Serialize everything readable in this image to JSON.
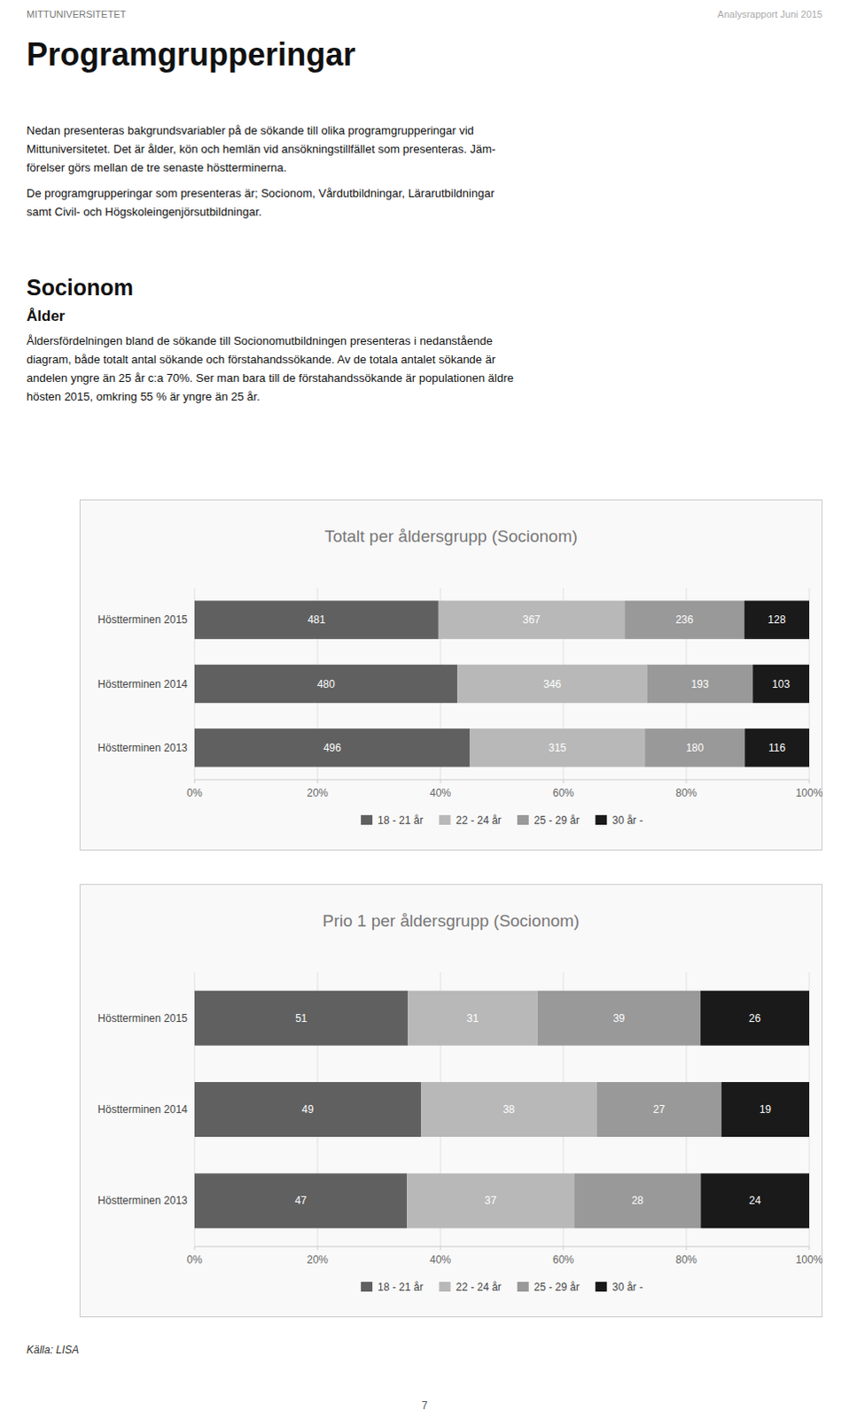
{
  "page": {
    "header_left": "MITTUNIVERSITETET",
    "header_right": "Analysrapport Juni 2015",
    "title": "Programgrupperingar",
    "intro_paragraphs": [
      [
        "Nedan presenteras bakgrundsvariabler på de sökande till olika programgrupperingar vid",
        "Mittuniversitetet. Det är ålder, kön och hemlän vid ansökningstillfället som presenteras. Jäm-",
        "förelser görs mellan de tre senaste höstterminerna."
      ],
      [
        "De programgrupperingar som presenteras är; Socionom, Vårdutbildningar, Lärarutbildningar",
        "samt Civil- och Högskoleingenjörsutbildningar."
      ]
    ],
    "section_title": "Socionom",
    "subsection_title": "Ålder",
    "body_text": [
      "Åldersfördelningen bland de sökande till Socionomutbildningen presenteras i nedanstående",
      "diagram, både totalt antal sökande och förstahandssökande. Av de totala antalet sökande är",
      "andelen yngre än 25 år c:a 70%. Ser man bara till de förstahandssökande är populationen äldre",
      "hösten 2015, omkring 55 % är yngre än 25 år."
    ],
    "footer": "Källa: LISA",
    "page_number": "7"
  },
  "chart_data": [
    {
      "type": "bar",
      "orientation": "horizontal",
      "stacked": true,
      "grid": true,
      "legend": "bottom",
      "title": "Totalt per åldersgrupp (Socionom)",
      "categories": [
        "Höstterminen 2015",
        "Höstterminen 2014",
        "Höstterminen 2013"
      ],
      "xlim": [
        0,
        100
      ],
      "xticks": [
        {
          "value": 0,
          "label": "0%"
        },
        {
          "value": 20,
          "label": "20%"
        },
        {
          "value": 40,
          "label": "40%"
        },
        {
          "value": 60,
          "label": "60%"
        },
        {
          "value": 80,
          "label": "80%"
        },
        {
          "value": 100,
          "label": "100%"
        }
      ],
      "series": [
        {
          "name": "18 - 21 år",
          "color": "#606060",
          "values": [
            39.686,
            42.781,
            44.806
          ],
          "counts": [
            481,
            480,
            496
          ]
        },
        {
          "name": "22 - 24 år",
          "color": "#b8b8b8",
          "values": [
            30.281,
            30.838,
            28.455
          ],
          "counts": [
            367,
            346,
            315
          ]
        },
        {
          "name": "25 - 29 år",
          "color": "#999999",
          "values": [
            19.472,
            17.201,
            16.26
          ],
          "counts": [
            236,
            193,
            180
          ]
        },
        {
          "name": "30 år -",
          "color": "#1a1a1a",
          "values": [
            10.561,
            9.18,
            10.479
          ],
          "counts": [
            128,
            103,
            116
          ]
        }
      ]
    },
    {
      "type": "bar",
      "orientation": "horizontal",
      "stacked": true,
      "grid": true,
      "legend": "bottom",
      "title": "Prio 1 per åldersgrupp (Socionom)",
      "categories": [
        "Höstterminen 2015",
        "Höstterminen 2014",
        "Höstterminen 2013"
      ],
      "xlim": [
        0,
        100
      ],
      "xticks": [
        {
          "value": 0,
          "label": "0%"
        },
        {
          "value": 20,
          "label": "20%"
        },
        {
          "value": 40,
          "label": "40%"
        },
        {
          "value": 60,
          "label": "60%"
        },
        {
          "value": 80,
          "label": "80%"
        },
        {
          "value": 100,
          "label": "100%"
        }
      ],
      "series": [
        {
          "name": "18 - 21 år",
          "color": "#606060",
          "values": [
            34.694,
            36.842,
            34.559
          ],
          "counts": [
            51,
            49,
            47
          ]
        },
        {
          "name": "22 - 24 år",
          "color": "#b8b8b8",
          "values": [
            21.088,
            28.571,
            27.206
          ],
          "counts": [
            31,
            38,
            37
          ]
        },
        {
          "name": "25 - 29 år",
          "color": "#999999",
          "values": [
            26.531,
            20.301,
            20.588
          ],
          "counts": [
            39,
            27,
            28
          ]
        },
        {
          "name": "30 år -",
          "color": "#1a1a1a",
          "values": [
            17.687,
            14.286,
            17.647
          ],
          "counts": [
            26,
            19,
            24
          ]
        }
      ]
    }
  ]
}
